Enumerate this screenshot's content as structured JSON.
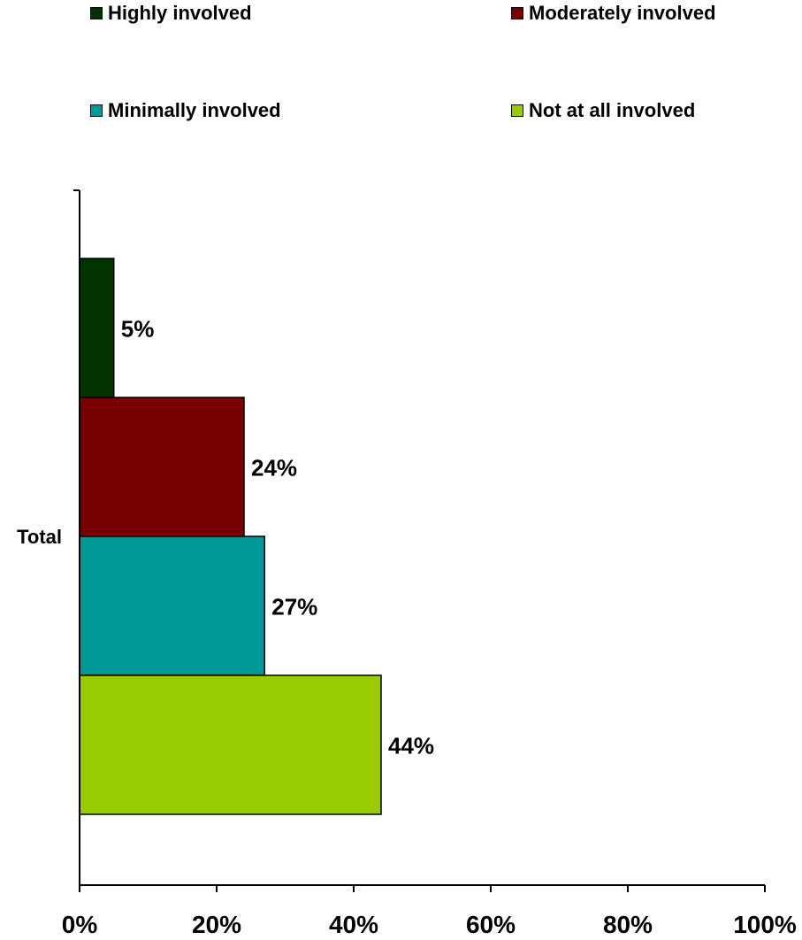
{
  "chart_data": {
    "type": "bar",
    "orientation": "horizontal",
    "categories": [
      "Total"
    ],
    "series": [
      {
        "name": "Highly involved",
        "values": [
          5
        ],
        "color": "#003300",
        "label": "5%"
      },
      {
        "name": "Moderately involved",
        "values": [
          24
        ],
        "color": "#770000",
        "label": "24%"
      },
      {
        "name": "Minimally involved",
        "values": [
          27
        ],
        "color": "#009999",
        "label": "27%"
      },
      {
        "name": "Not at all involved",
        "values": [
          44
        ],
        "color": "#99cc00",
        "label": "44%"
      }
    ],
    "xlim": [
      0,
      100
    ],
    "xticks": [
      "0%",
      "20%",
      "40%",
      "60%",
      "80%",
      "100%"
    ],
    "xtick_values": [
      0,
      20,
      40,
      60,
      80,
      100
    ],
    "title": "",
    "xlabel": "",
    "ylabel": "",
    "legend_position": "top",
    "grid": false
  }
}
